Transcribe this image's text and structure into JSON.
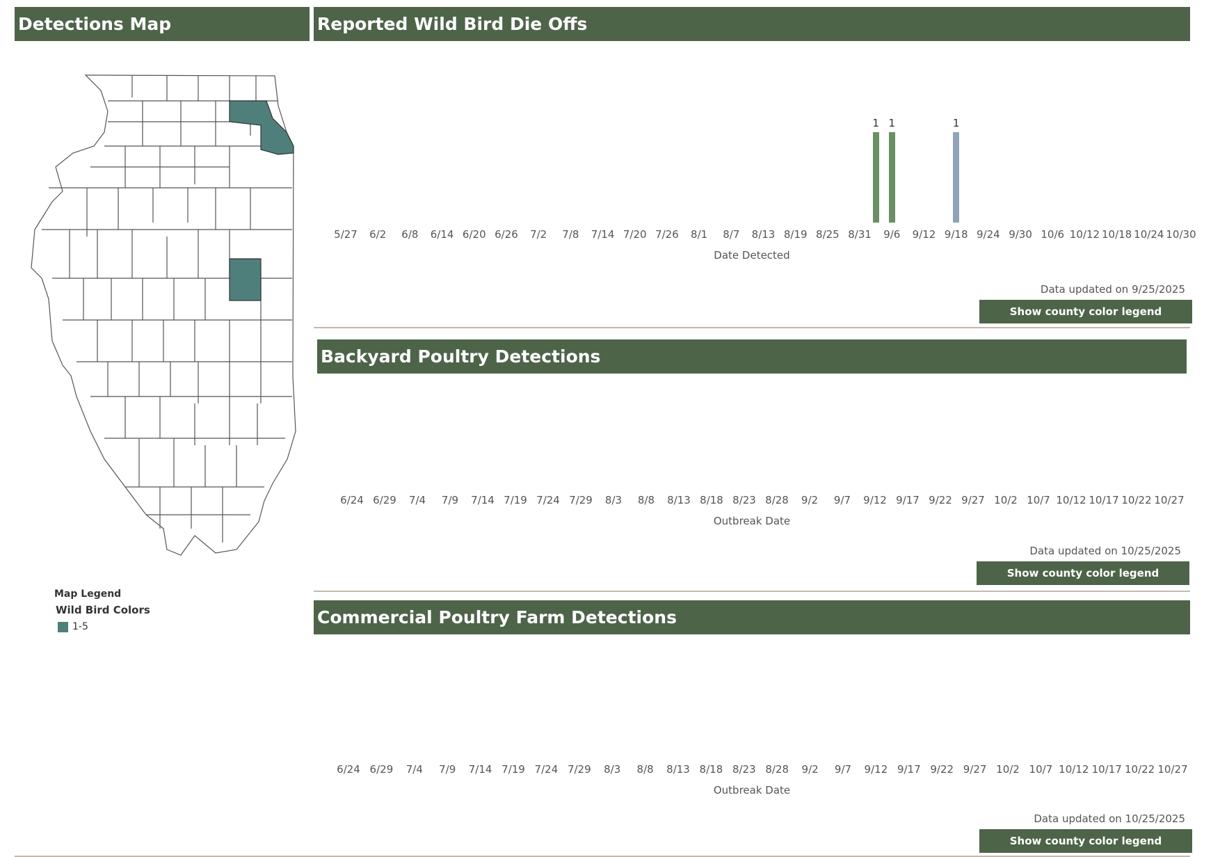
{
  "map_panel": {
    "title": "Detections Map",
    "legend": {
      "title": "Map Legend",
      "subtitle": "Wild Bird Colors",
      "items": [
        {
          "label": "1-5",
          "color": "#4f7f7b"
        }
      ]
    },
    "highlight_color": "#4f7f7b"
  },
  "wild_bird": {
    "title": "Reported Wild Bird Die Offs",
    "updated": "Data updated on 9/25/2025",
    "button": "Show county color legend",
    "chart_data": {
      "type": "bar",
      "xlabel": "Date Detected",
      "tick_labels": [
        "5/27",
        "6/2",
        "6/8",
        "6/14",
        "6/20",
        "6/26",
        "7/2",
        "7/8",
        "7/14",
        "7/20",
        "7/26",
        "8/1",
        "8/7",
        "8/13",
        "8/19",
        "8/25",
        "8/31",
        "9/6",
        "9/12",
        "9/18",
        "9/24",
        "9/30",
        "10/6",
        "10/12",
        "10/18",
        "10/24",
        "10/30"
      ],
      "bars": [
        {
          "x": "9/3",
          "value": 1,
          "color": "#6b8f65"
        },
        {
          "x": "9/6",
          "value": 1,
          "color": "#6b8f65"
        },
        {
          "x": "9/18",
          "value": 1,
          "color": "#8fa2b8"
        }
      ]
    }
  },
  "backyard": {
    "title": "Backyard Poultry Detections",
    "updated": "Data updated on 10/25/2025",
    "button": "Show county color legend",
    "chart_data": {
      "type": "bar",
      "xlabel": "Outbreak Date",
      "tick_labels": [
        "6/24",
        "6/29",
        "7/4",
        "7/9",
        "7/14",
        "7/19",
        "7/24",
        "7/29",
        "8/3",
        "8/8",
        "8/13",
        "8/18",
        "8/23",
        "8/28",
        "9/2",
        "9/7",
        "9/12",
        "9/17",
        "9/22",
        "9/27",
        "10/2",
        "10/7",
        "10/12",
        "10/17",
        "10/22",
        "10/27"
      ],
      "bars": []
    }
  },
  "commercial": {
    "title": "Commercial Poultry Farm Detections",
    "updated": "Data updated on 10/25/2025",
    "button": "Show county color legend",
    "chart_data": {
      "type": "bar",
      "xlabel": "Outbreak Date",
      "tick_labels": [
        "6/24",
        "6/29",
        "7/4",
        "7/9",
        "7/14",
        "7/19",
        "7/24",
        "7/29",
        "8/3",
        "8/8",
        "8/13",
        "8/18",
        "8/23",
        "8/28",
        "9/2",
        "9/7",
        "9/12",
        "9/17",
        "9/22",
        "9/27",
        "10/2",
        "10/7",
        "10/12",
        "10/17",
        "10/22",
        "10/27"
      ],
      "bars": []
    }
  }
}
